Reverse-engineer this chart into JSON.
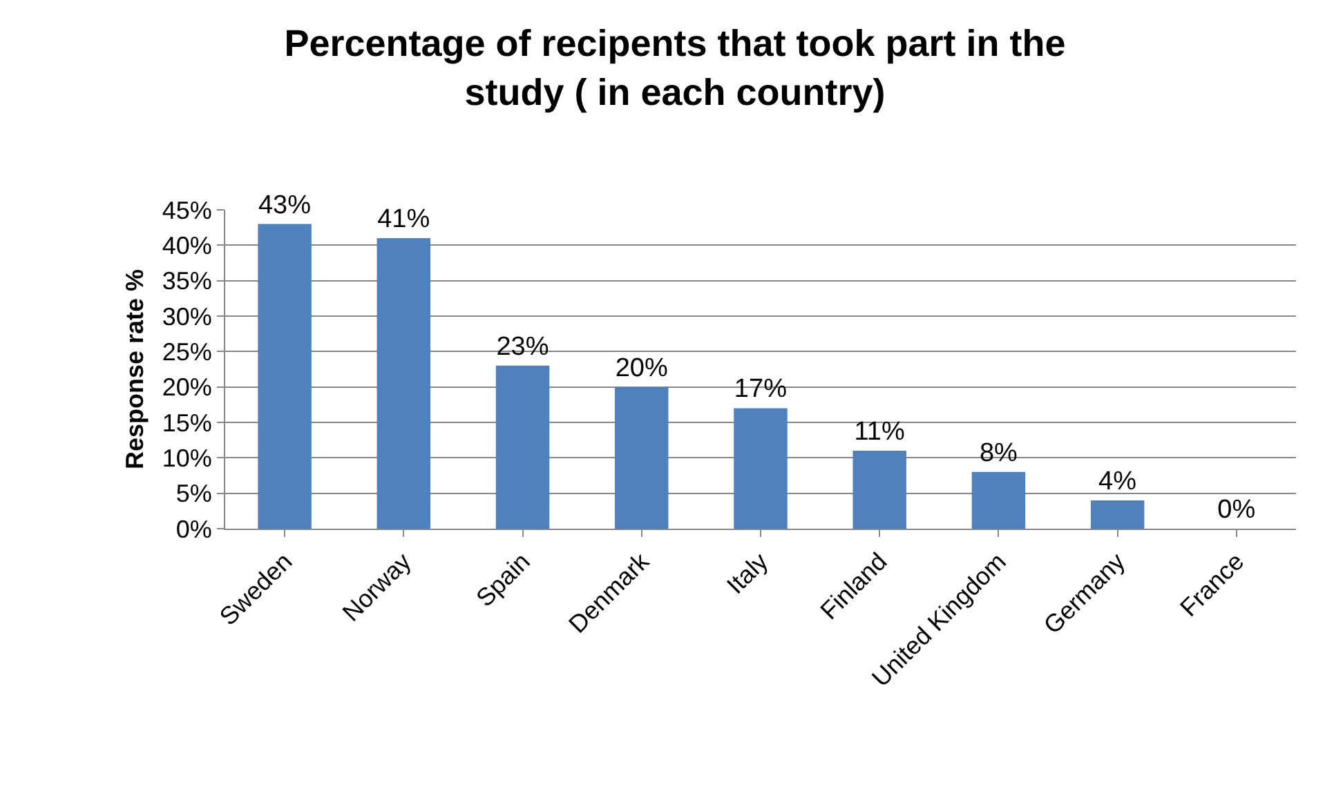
{
  "chart_data": {
    "type": "bar",
    "title": "Percentage of recipents that took part in the study ( in each country)",
    "ylabel": "Response rate %",
    "categories": [
      "Sweden",
      "Norway",
      "Spain",
      "Denmark",
      "Italy",
      "Finland",
      "United Kingdom",
      "Germany",
      "France"
    ],
    "values": [
      43,
      41,
      23,
      20,
      17,
      11,
      8,
      4,
      0
    ],
    "value_labels": [
      "43%",
      "41%",
      "23%",
      "20%",
      "17%",
      "11%",
      "8%",
      "4%",
      "0%"
    ],
    "color": "#4f81bd",
    "ylim": [
      0,
      45
    ],
    "yticks": [
      {
        "value": 0,
        "label": "0%"
      },
      {
        "value": 5,
        "label": "5%"
      },
      {
        "value": 10,
        "label": "10%"
      },
      {
        "value": 15,
        "label": "15%"
      },
      {
        "value": 20,
        "label": "20%"
      },
      {
        "value": 25,
        "label": "25%"
      },
      {
        "value": 30,
        "label": "30%"
      },
      {
        "value": 35,
        "label": "35%"
      },
      {
        "value": 40,
        "label": "40%"
      },
      {
        "value": 45,
        "label": "45%"
      }
    ],
    "grid": "y"
  }
}
